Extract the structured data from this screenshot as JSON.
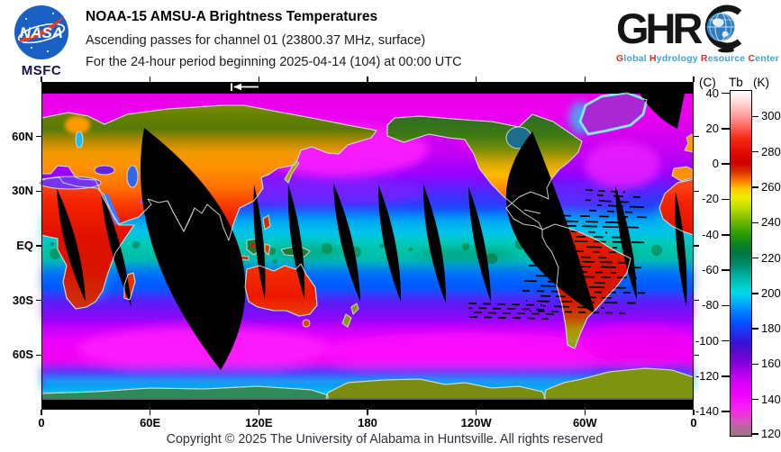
{
  "header": {
    "nasa": {
      "alt": "NASA insignia",
      "center_label": "MSFC"
    },
    "title": "NOAA-15 AMSU-A Brightness Temperatures",
    "subtitle_channel": "Ascending passes for channel 01 (23800.37 MHz, surface)",
    "subtitle_period": "For the 24-hour period beginning 2025-04-14 (104) at 00:00 UTC",
    "ghrc": {
      "letters": "GHR",
      "tagline_words": [
        "Global",
        "Hydrology",
        "Resource",
        "Center"
      ],
      "accent_red": "#c0392b",
      "accent_blue": "#3aa7d9"
    }
  },
  "map": {
    "x_tick_labels": [
      "0",
      "60E",
      "120E",
      "180",
      "120W",
      "60W",
      "0"
    ],
    "y_tick_labels": [
      "60N",
      "30N",
      "EQ",
      "30S",
      "60S"
    ],
    "y_tick_lats": [
      60,
      30,
      0,
      -30,
      -60
    ]
  },
  "colorbar": {
    "unit_left": "(C)",
    "unit_center": "Tb",
    "unit_right": "(K)",
    "celsius_ticks": [
      40,
      20,
      0,
      -20,
      -40,
      -60,
      -80,
      -100,
      -120,
      -140
    ],
    "kelvin_ticks": [
      300,
      280,
      260,
      240,
      220,
      200,
      180,
      160,
      140,
      120
    ],
    "kelvin_min": 120,
    "kelvin_max": 315
  },
  "footer": {
    "copyright": "Copyright © 2025 The University of Alabama in Huntsville.  All rights reserved"
  }
}
